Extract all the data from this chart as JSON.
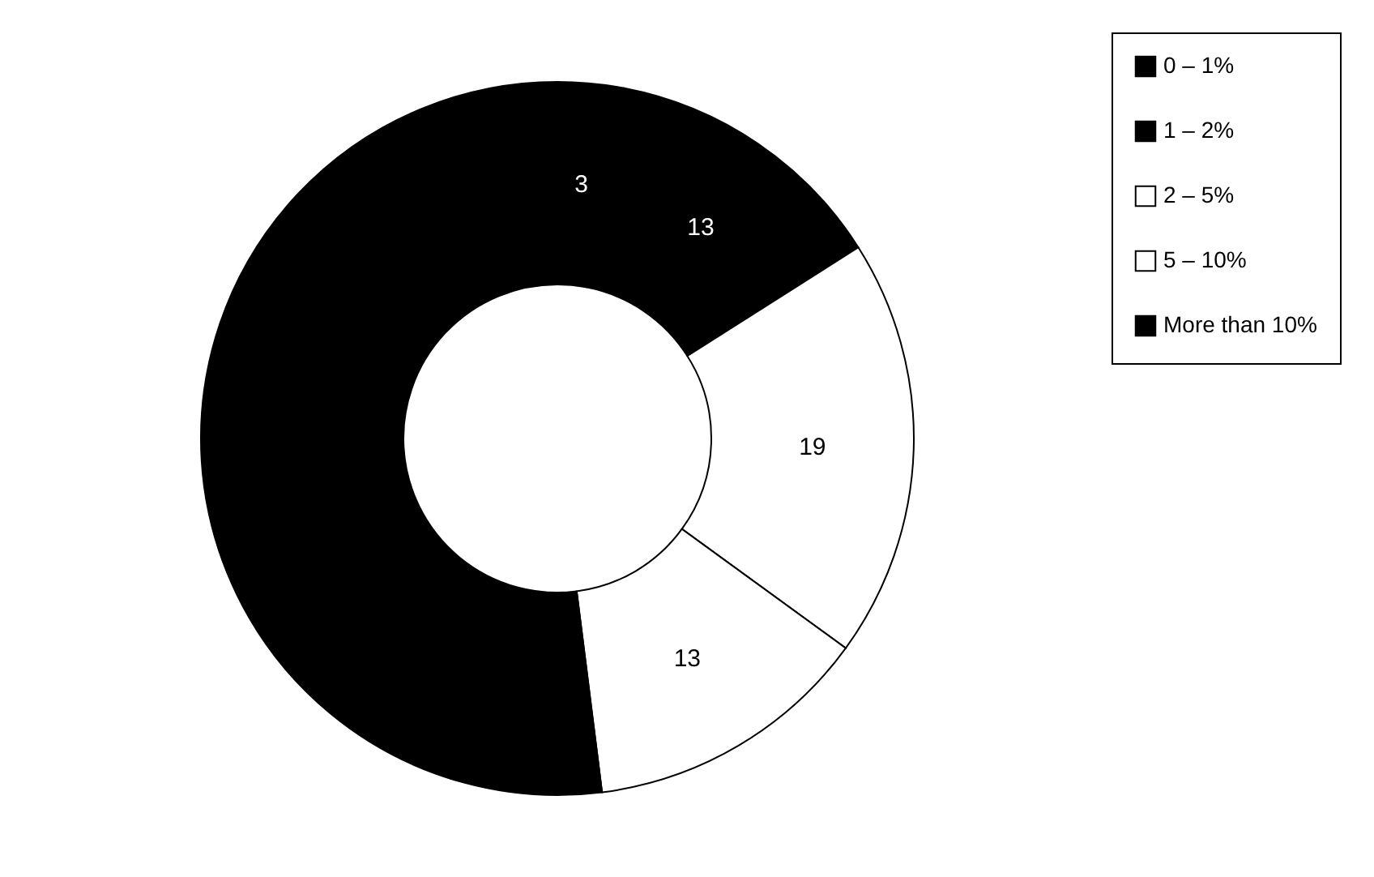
{
  "chart_data": {
    "type": "donut",
    "categories": [
      "0 – 1%",
      "1 – 2%",
      "2 – 5%",
      "5 – 10%",
      "More than 10%"
    ],
    "values": [
      3,
      13,
      19,
      13,
      52
    ],
    "colors": [
      "#000000",
      "#000000",
      "#ffffff",
      "#ffffff",
      "#000000"
    ],
    "value_labels": [
      "3",
      "13",
      "19",
      "13",
      null
    ],
    "legend": "right"
  }
}
